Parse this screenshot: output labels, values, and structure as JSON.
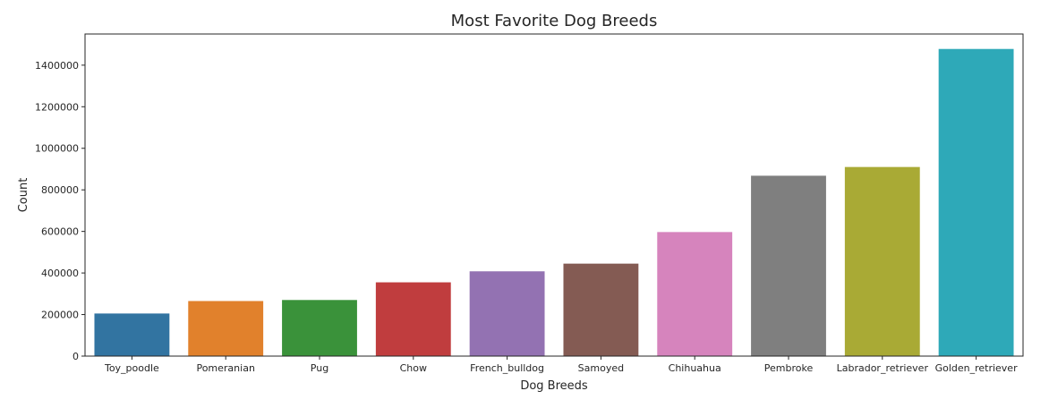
{
  "chart_data": {
    "type": "bar",
    "title": "Most Favorite Dog Breeds",
    "xlabel": "Dog Breeds",
    "ylabel": "Count",
    "categories": [
      "Toy_poodle",
      "Pomeranian",
      "Pug",
      "Chow",
      "French_bulldog",
      "Samoyed",
      "Chihuahua",
      "Pembroke",
      "Labrador_retriever",
      "Golden_retriever"
    ],
    "values": [
      205000,
      265000,
      270000,
      355000,
      408000,
      445000,
      597000,
      868000,
      910000,
      1478000
    ],
    "colors": [
      "#3274a1",
      "#e1812c",
      "#3a923a",
      "#c03d3e",
      "#9372b2",
      "#845b53",
      "#d684bd",
      "#7f7f7f",
      "#a9aa35",
      "#2ea9b8"
    ],
    "ylim": [
      0,
      1550000
    ],
    "yticks": [
      0,
      200000,
      400000,
      600000,
      800000,
      1000000,
      1200000,
      1400000
    ],
    "ytick_labels": [
      "0",
      "200000",
      "400000",
      "600000",
      "800000",
      "1000000",
      "1200000",
      "1400000"
    ],
    "grid": false,
    "legend": "none"
  }
}
